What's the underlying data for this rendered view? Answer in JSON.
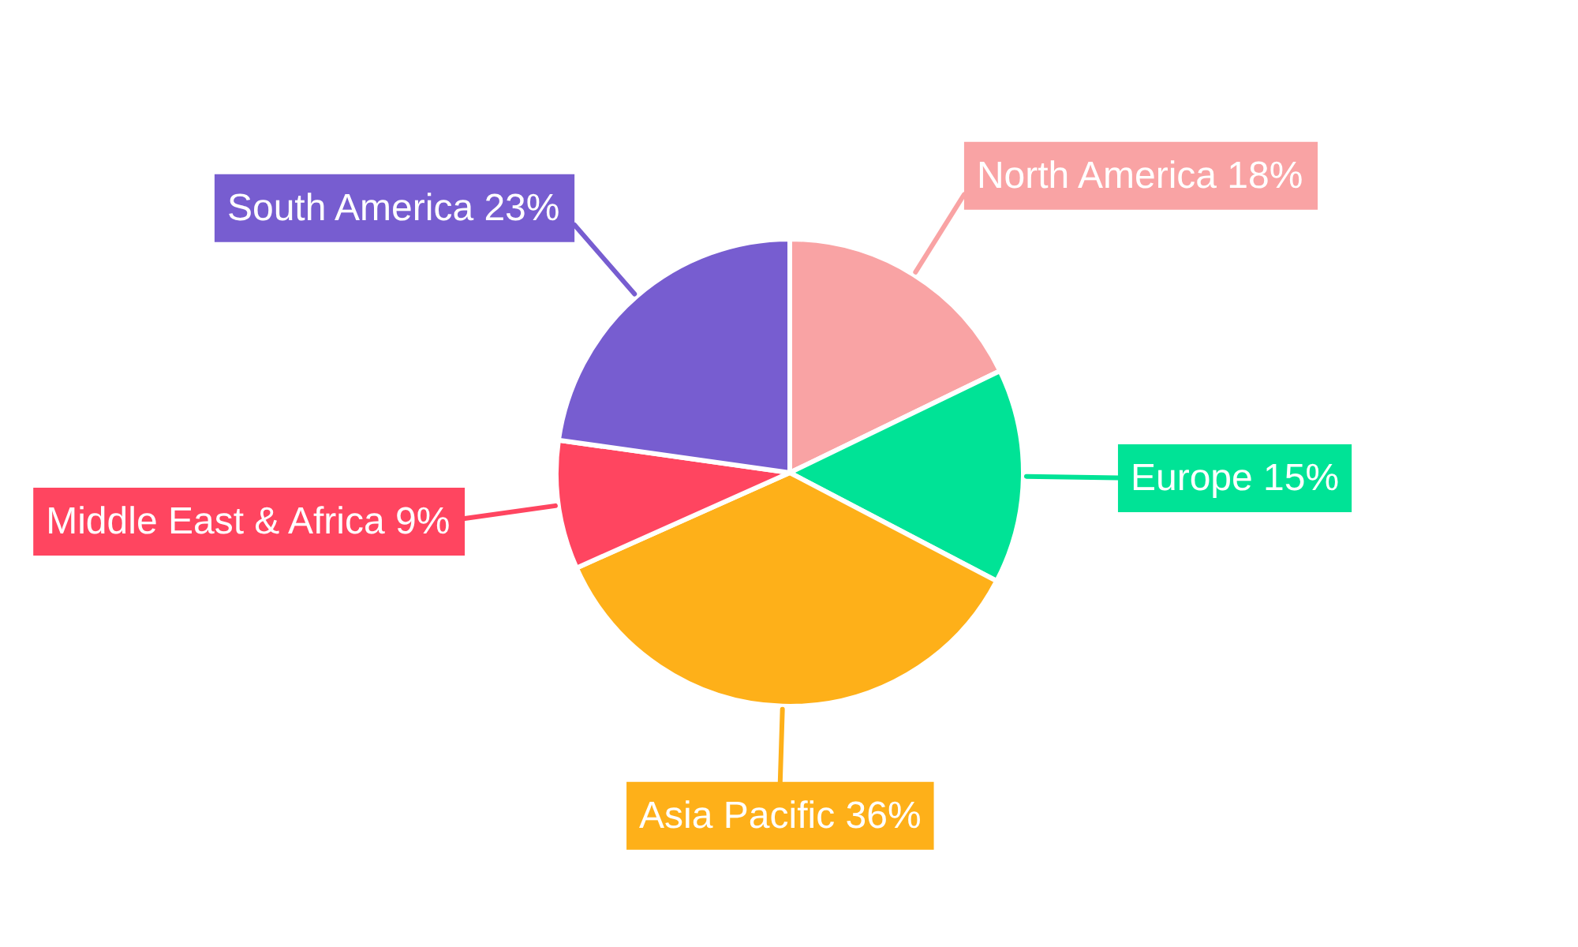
{
  "chart_data": {
    "type": "pie",
    "categories": [
      "North America",
      "Europe",
      "Asia Pacific",
      "Middle East & Africa",
      "South America"
    ],
    "values": [
      18,
      15,
      36,
      9,
      23
    ],
    "colors": [
      "#f9a3a4",
      "#00e396",
      "#feb019",
      "#ff4560",
      "#775dd0"
    ],
    "value_labels": [
      "18%",
      "15%",
      "36%",
      "9%",
      "23%"
    ]
  }
}
